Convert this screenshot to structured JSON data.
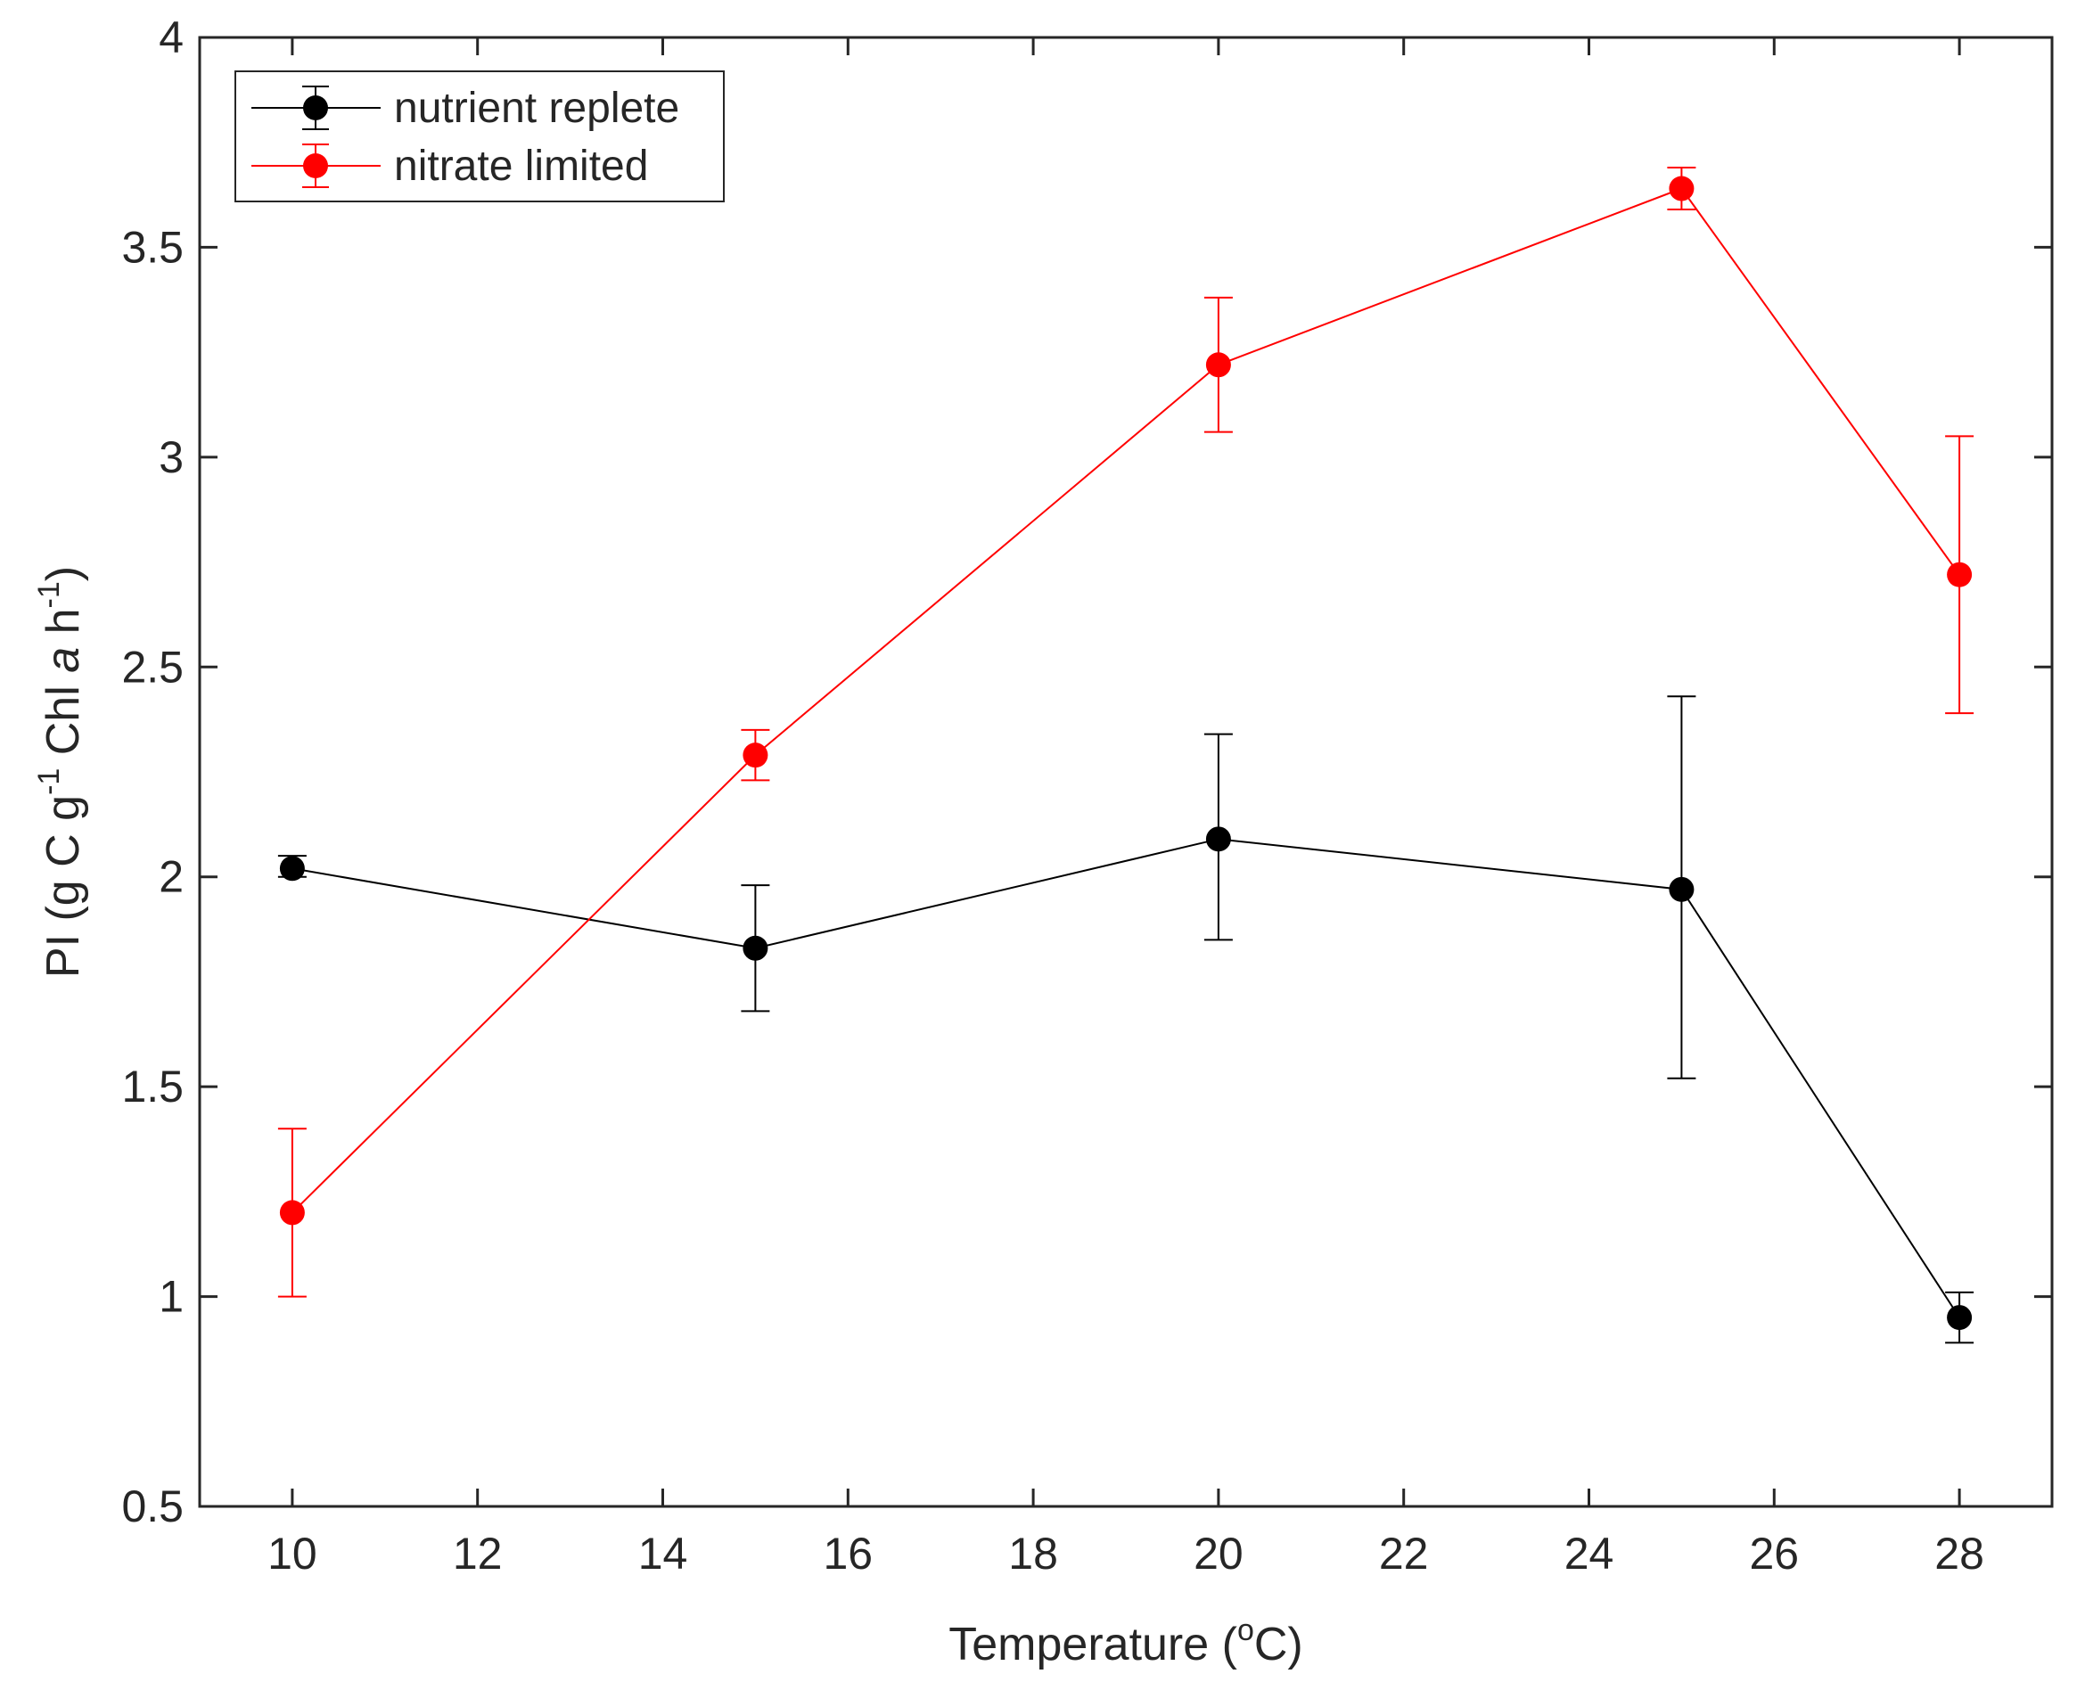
{
  "chart_data": {
    "type": "line",
    "title": "",
    "xlabel": {
      "main": "Temperature (",
      "sup": "o",
      "end": "C)"
    },
    "ylabel": {
      "prefix": "PI (g C g",
      "sup1": "-1",
      "middle": " Chl ",
      "italic": "a",
      "h": " h",
      "sup2": "-1",
      "end": ")"
    },
    "xlim": [
      9,
      29
    ],
    "ylim": [
      0.5,
      4
    ],
    "xticks": [
      10,
      12,
      14,
      16,
      18,
      20,
      22,
      24,
      26,
      28
    ],
    "yticks": [
      0.5,
      1,
      1.5,
      2,
      2.5,
      3,
      3.5,
      4
    ],
    "ytick_labels": [
      "0.5",
      "1",
      "1.5",
      "2",
      "2.5",
      "3",
      "3.5",
      "4"
    ],
    "grid": false,
    "legend_position": "top-left",
    "series": [
      {
        "name": "nutrient replete",
        "color": "#000000",
        "x": [
          10,
          15,
          20,
          25,
          28
        ],
        "y": [
          2.02,
          1.83,
          2.09,
          1.97,
          0.95
        ],
        "err_low": [
          2.0,
          1.68,
          1.85,
          1.52,
          0.89
        ],
        "err_high": [
          2.05,
          1.98,
          2.34,
          2.43,
          1.01
        ]
      },
      {
        "name": "nitrate limited",
        "color": "#ff0000",
        "x": [
          10,
          15,
          20,
          25,
          28
        ],
        "y": [
          1.2,
          2.29,
          3.22,
          3.64,
          2.72
        ],
        "err_low": [
          1.0,
          2.23,
          3.06,
          3.59,
          2.39
        ],
        "err_high": [
          1.4,
          2.35,
          3.38,
          3.69,
          3.05
        ]
      }
    ]
  }
}
